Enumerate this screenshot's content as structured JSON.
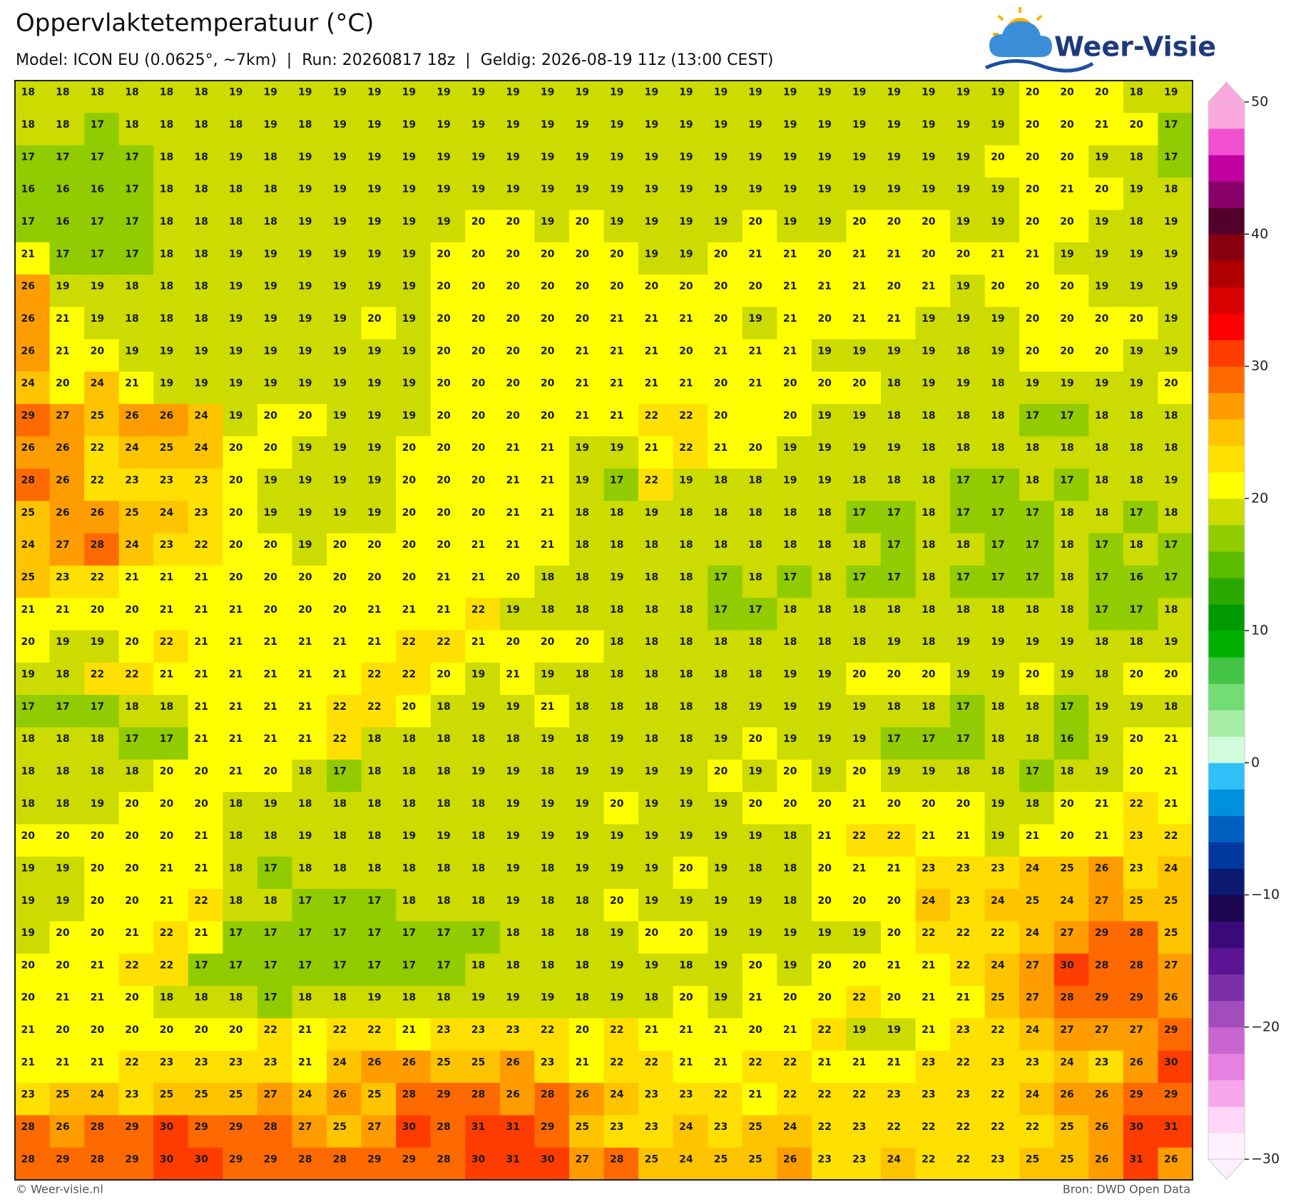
{
  "header": {
    "title": "Oppervlaktetemperatuur (°C)",
    "subtitle": "Model: ICON EU (0.0625°, ~7km)  |  Run: 20260817 18z  |  Geldig: 2026-08-19 11z (13:00 CEST)",
    "logo": "Weer-Visie"
  },
  "map": {
    "values": [
      [
        18,
        18,
        18,
        18,
        18,
        18,
        19,
        19,
        19,
        19,
        19,
        19,
        19,
        19,
        19,
        19,
        19,
        19,
        19,
        19,
        19,
        19,
        19,
        19,
        19,
        19,
        19,
        19,
        19,
        20,
        20,
        20,
        18,
        19
      ],
      [
        18,
        18,
        17,
        18,
        18,
        18,
        18,
        19,
        18,
        19,
        19,
        19,
        19,
        19,
        19,
        19,
        19,
        19,
        19,
        19,
        19,
        19,
        19,
        19,
        19,
        19,
        19,
        19,
        19,
        20,
        20,
        21,
        20,
        17
      ],
      [
        17,
        17,
        17,
        17,
        18,
        18,
        19,
        18,
        19,
        19,
        19,
        19,
        19,
        19,
        19,
        19,
        19,
        19,
        19,
        19,
        19,
        19,
        19,
        19,
        19,
        19,
        19,
        19,
        20,
        20,
        20,
        19,
        18,
        17
      ],
      [
        16,
        16,
        16,
        17,
        18,
        18,
        18,
        18,
        19,
        19,
        19,
        19,
        19,
        19,
        19,
        19,
        19,
        19,
        19,
        19,
        19,
        19,
        19,
        19,
        19,
        19,
        19,
        19,
        19,
        20,
        21,
        20,
        19,
        18
      ],
      [
        17,
        16,
        17,
        17,
        18,
        18,
        18,
        18,
        19,
        19,
        19,
        19,
        19,
        20,
        20,
        19,
        20,
        19,
        19,
        19,
        19,
        20,
        19,
        19,
        20,
        20,
        20,
        19,
        19,
        20,
        20,
        19,
        18,
        19
      ],
      [
        21,
        17,
        17,
        17,
        18,
        18,
        19,
        19,
        19,
        19,
        19,
        19,
        20,
        20,
        20,
        20,
        20,
        20,
        19,
        19,
        20,
        21,
        21,
        20,
        21,
        21,
        20,
        20,
        21,
        21,
        19,
        19,
        19,
        19
      ],
      [
        26,
        19,
        19,
        18,
        18,
        18,
        19,
        19,
        19,
        19,
        19,
        19,
        20,
        20,
        20,
        20,
        20,
        20,
        20,
        20,
        20,
        20,
        21,
        21,
        21,
        20,
        21,
        19,
        20,
        20,
        20,
        19,
        19,
        19
      ],
      [
        26,
        21,
        19,
        18,
        18,
        18,
        19,
        19,
        19,
        19,
        20,
        19,
        20,
        20,
        20,
        20,
        20,
        21,
        21,
        21,
        20,
        19,
        21,
        20,
        21,
        21,
        19,
        19,
        19,
        20,
        20,
        20,
        20,
        19
      ],
      [
        26,
        21,
        20,
        19,
        19,
        19,
        19,
        19,
        19,
        19,
        19,
        19,
        20,
        20,
        20,
        20,
        21,
        21,
        21,
        20,
        21,
        21,
        21,
        19,
        19,
        19,
        19,
        18,
        19,
        20,
        20,
        20,
        19,
        19
      ],
      [
        24,
        20,
        24,
        21,
        19,
        19,
        19,
        19,
        19,
        19,
        19,
        19,
        20,
        20,
        20,
        20,
        21,
        21,
        21,
        21,
        20,
        21,
        20,
        20,
        20,
        18,
        19,
        19,
        18,
        19,
        19,
        19,
        19,
        20
      ],
      [
        29,
        27,
        25,
        26,
        26,
        24,
        19,
        20,
        20,
        19,
        19,
        19,
        20,
        20,
        20,
        20,
        21,
        21,
        22,
        22,
        20,
        null,
        20,
        19,
        19,
        18,
        18,
        18,
        18,
        17,
        17,
        18,
        18,
        18
      ],
      [
        26,
        26,
        22,
        24,
        25,
        24,
        20,
        20,
        19,
        19,
        19,
        20,
        20,
        20,
        21,
        21,
        19,
        19,
        21,
        22,
        21,
        20,
        19,
        19,
        19,
        19,
        18,
        18,
        18,
        18,
        18,
        18,
        18,
        18
      ],
      [
        28,
        26,
        22,
        23,
        23,
        23,
        20,
        19,
        19,
        19,
        19,
        20,
        20,
        20,
        21,
        21,
        19,
        17,
        22,
        19,
        18,
        18,
        19,
        19,
        18,
        18,
        18,
        17,
        17,
        18,
        17,
        18,
        18,
        19
      ],
      [
        25,
        26,
        26,
        25,
        24,
        23,
        20,
        19,
        19,
        19,
        19,
        20,
        20,
        20,
        21,
        21,
        18,
        18,
        19,
        18,
        18,
        18,
        18,
        18,
        17,
        17,
        18,
        17,
        17,
        17,
        18,
        18,
        17,
        18
      ],
      [
        24,
        27,
        28,
        24,
        23,
        22,
        20,
        20,
        19,
        20,
        20,
        20,
        20,
        21,
        21,
        21,
        18,
        18,
        18,
        18,
        18,
        18,
        18,
        18,
        18,
        17,
        18,
        18,
        17,
        17,
        18,
        17,
        18,
        17
      ],
      [
        25,
        23,
        22,
        21,
        21,
        21,
        20,
        20,
        20,
        20,
        20,
        20,
        21,
        21,
        20,
        18,
        18,
        19,
        18,
        18,
        17,
        18,
        17,
        18,
        17,
        17,
        18,
        17,
        17,
        17,
        18,
        17,
        16,
        17
      ],
      [
        21,
        21,
        20,
        20,
        21,
        21,
        21,
        20,
        20,
        20,
        21,
        21,
        21,
        22,
        19,
        18,
        18,
        18,
        18,
        18,
        17,
        17,
        18,
        18,
        18,
        18,
        18,
        18,
        18,
        18,
        18,
        17,
        17,
        18
      ],
      [
        20,
        19,
        19,
        20,
        22,
        21,
        21,
        21,
        21,
        21,
        21,
        22,
        22,
        21,
        20,
        20,
        20,
        18,
        18,
        18,
        18,
        18,
        18,
        18,
        18,
        19,
        18,
        19,
        19,
        19,
        19,
        18,
        18,
        19
      ],
      [
        19,
        18,
        22,
        22,
        21,
        21,
        21,
        21,
        21,
        21,
        22,
        22,
        20,
        19,
        21,
        19,
        18,
        18,
        18,
        18,
        18,
        18,
        19,
        19,
        20,
        20,
        20,
        19,
        19,
        20,
        19,
        18,
        20,
        20
      ],
      [
        17,
        17,
        17,
        18,
        18,
        21,
        21,
        21,
        21,
        22,
        22,
        20,
        18,
        19,
        19,
        21,
        18,
        18,
        18,
        18,
        18,
        19,
        19,
        19,
        19,
        18,
        18,
        17,
        18,
        18,
        17,
        19,
        19,
        18
      ],
      [
        18,
        18,
        18,
        17,
        17,
        21,
        21,
        21,
        21,
        22,
        18,
        18,
        18,
        18,
        18,
        19,
        18,
        19,
        18,
        18,
        19,
        20,
        19,
        19,
        19,
        17,
        17,
        17,
        18,
        18,
        16,
        19,
        20,
        21
      ],
      [
        18,
        18,
        18,
        18,
        20,
        20,
        21,
        20,
        18,
        17,
        18,
        18,
        18,
        19,
        19,
        18,
        19,
        19,
        19,
        19,
        20,
        19,
        20,
        19,
        20,
        19,
        19,
        18,
        18,
        17,
        18,
        19,
        20,
        21
      ],
      [
        18,
        18,
        19,
        20,
        20,
        20,
        18,
        19,
        18,
        18,
        18,
        18,
        18,
        18,
        19,
        19,
        19,
        20,
        19,
        19,
        19,
        20,
        20,
        20,
        21,
        20,
        20,
        20,
        19,
        18,
        20,
        21,
        22,
        21
      ],
      [
        20,
        20,
        20,
        20,
        20,
        21,
        18,
        18,
        19,
        18,
        18,
        19,
        19,
        18,
        19,
        19,
        19,
        19,
        19,
        19,
        19,
        19,
        18,
        21,
        22,
        22,
        21,
        21,
        19,
        21,
        20,
        21,
        23,
        22
      ],
      [
        19,
        19,
        20,
        20,
        21,
        21,
        18,
        17,
        18,
        18,
        18,
        18,
        18,
        18,
        19,
        18,
        19,
        19,
        19,
        20,
        19,
        18,
        18,
        20,
        21,
        21,
        23,
        23,
        23,
        24,
        25,
        26,
        23,
        24
      ],
      [
        19,
        19,
        20,
        20,
        21,
        22,
        18,
        18,
        17,
        17,
        17,
        18,
        18,
        18,
        19,
        18,
        18,
        20,
        19,
        19,
        19,
        19,
        18,
        20,
        20,
        20,
        24,
        23,
        24,
        25,
        24,
        27,
        25,
        25
      ],
      [
        19,
        20,
        20,
        21,
        22,
        21,
        17,
        17,
        17,
        17,
        17,
        17,
        17,
        17,
        18,
        18,
        18,
        19,
        20,
        20,
        19,
        19,
        19,
        19,
        19,
        20,
        22,
        22,
        22,
        24,
        27,
        29,
        28,
        25
      ],
      [
        20,
        20,
        21,
        22,
        22,
        17,
        17,
        17,
        17,
        17,
        17,
        17,
        17,
        18,
        18,
        18,
        18,
        19,
        19,
        18,
        19,
        20,
        19,
        20,
        20,
        21,
        21,
        22,
        24,
        27,
        30,
        28,
        28,
        27
      ],
      [
        20,
        21,
        21,
        20,
        18,
        18,
        18,
        17,
        18,
        18,
        19,
        18,
        18,
        19,
        19,
        19,
        18,
        19,
        18,
        20,
        19,
        21,
        20,
        20,
        22,
        20,
        21,
        21,
        25,
        27,
        28,
        29,
        29,
        26
      ],
      [
        21,
        20,
        20,
        20,
        20,
        20,
        20,
        22,
        21,
        22,
        22,
        21,
        23,
        23,
        23,
        22,
        20,
        22,
        21,
        21,
        21,
        20,
        21,
        22,
        19,
        19,
        21,
        23,
        22,
        24,
        27,
        27,
        27,
        29
      ],
      [
        21,
        21,
        21,
        22,
        23,
        23,
        23,
        23,
        21,
        24,
        26,
        26,
        25,
        25,
        26,
        23,
        21,
        22,
        22,
        21,
        21,
        22,
        22,
        21,
        21,
        21,
        23,
        22,
        23,
        23,
        24,
        23,
        26,
        30
      ],
      [
        23,
        25,
        24,
        23,
        25,
        25,
        25,
        27,
        24,
        26,
        25,
        28,
        29,
        28,
        26,
        28,
        26,
        24,
        23,
        23,
        22,
        21,
        22,
        22,
        22,
        23,
        23,
        23,
        22,
        24,
        26,
        26,
        29,
        29
      ],
      [
        28,
        26,
        28,
        29,
        30,
        29,
        29,
        28,
        27,
        25,
        27,
        30,
        28,
        31,
        31,
        29,
        25,
        23,
        23,
        24,
        23,
        25,
        24,
        22,
        23,
        22,
        22,
        22,
        22,
        22,
        25,
        26,
        30,
        31
      ],
      [
        28,
        29,
        28,
        29,
        30,
        30,
        29,
        29,
        28,
        28,
        29,
        29,
        28,
        30,
        31,
        30,
        27,
        28,
        25,
        24,
        25,
        25,
        26,
        23,
        23,
        24,
        22,
        22,
        23,
        25,
        25,
        26,
        31,
        26
      ]
    ],
    "colorbar": {
      "lim": [
        -30,
        50
      ],
      "ticks": [
        {
          "value": -30,
          "label": "−30"
        },
        {
          "value": -20,
          "label": "−20"
        },
        {
          "value": -10,
          "label": "−10"
        },
        0,
        10,
        20,
        30,
        40,
        50
      ],
      "colors": [
        "#fff0fd",
        "#ffd6f6",
        "#f7a6ec",
        "#e781e1",
        "#c965d0",
        "#a24dbd",
        "#7b30a8",
        "#5a1494",
        "#3a0a78",
        "#1c0650",
        "#0b1a6e",
        "#0038a0",
        "#0060c0",
        "#0090dc",
        "#30c0f8",
        "#d0fcdc",
        "#a6eea6",
        "#74dc74",
        "#44c444",
        "#00b000",
        "#009a00",
        "#2aa800",
        "#5cbc00",
        "#90cc00",
        "#ccdb00",
        "#ffff00",
        "#ffe000",
        "#ffc400",
        "#ff9c00",
        "#ff6a00",
        "#ff3c00",
        "#ff0000",
        "#d80000",
        "#b00000",
        "#880010",
        "#52002a",
        "#880068",
        "#c000a0",
        "#f050d0",
        "#f8a8dc"
      ]
    }
  },
  "footer": {
    "credit": "© Weer-visie.nl",
    "source": "Bron: DWD Open Data"
  }
}
